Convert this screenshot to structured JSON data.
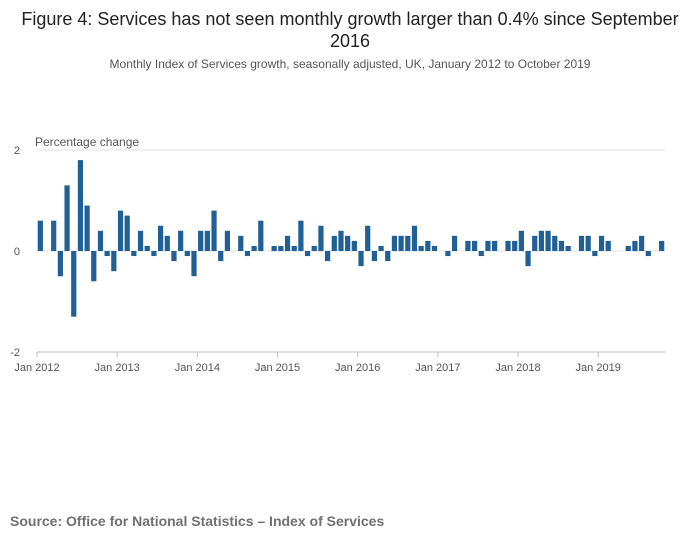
{
  "chart_data": {
    "type": "bar",
    "title": "Figure 4: Services has not seen monthly growth larger than 0.4% since September 2016",
    "subtitle": "Monthly Index of Services growth, seasonally adjusted, UK, January 2012 to October 2019",
    "ylabel": "Percentage change",
    "xlabel": "",
    "ylim": [
      -2,
      2
    ],
    "yticks": [
      "2",
      "0",
      "-2"
    ],
    "xtick_labels": [
      "Jan 2012",
      "Jan 2013",
      "Jan 2014",
      "Jan 2015",
      "Jan 2016",
      "Jan 2017",
      "Jan 2018",
      "Jan 2019"
    ],
    "bar_color": "#206095",
    "grid": true,
    "legend": "none",
    "start_period": "Jan 2012",
    "end_period": "Oct 2019",
    "values": [
      0.6,
      0.0,
      0.6,
      -0.5,
      1.3,
      -1.3,
      1.8,
      0.9,
      -0.6,
      0.4,
      -0.1,
      -0.4,
      0.8,
      0.7,
      -0.1,
      0.4,
      0.1,
      -0.1,
      0.5,
      0.3,
      -0.2,
      0.4,
      -0.1,
      -0.5,
      0.4,
      0.4,
      0.8,
      -0.2,
      0.4,
      0.0,
      0.3,
      -0.1,
      0.1,
      0.6,
      0.0,
      0.1,
      0.1,
      0.3,
      0.1,
      0.6,
      -0.1,
      0.1,
      0.5,
      -0.2,
      0.3,
      0.4,
      0.3,
      0.2,
      -0.3,
      0.5,
      -0.2,
      0.1,
      -0.2,
      0.3,
      0.3,
      0.3,
      0.5,
      0.1,
      0.2,
      0.1,
      0.0,
      -0.1,
      0.3,
      0.0,
      0.2,
      0.2,
      -0.1,
      0.2,
      0.2,
      0.0,
      0.2,
      0.2,
      0.4,
      -0.3,
      0.3,
      0.4,
      0.4,
      0.3,
      0.2,
      0.1,
      0.0,
      0.3,
      0.3,
      -0.1,
      0.3,
      0.2,
      0.0,
      0.0,
      0.1,
      0.2,
      0.3,
      -0.1,
      0.0,
      0.2
    ]
  },
  "source_text": "Source: Office for National Statistics – Index of Services"
}
